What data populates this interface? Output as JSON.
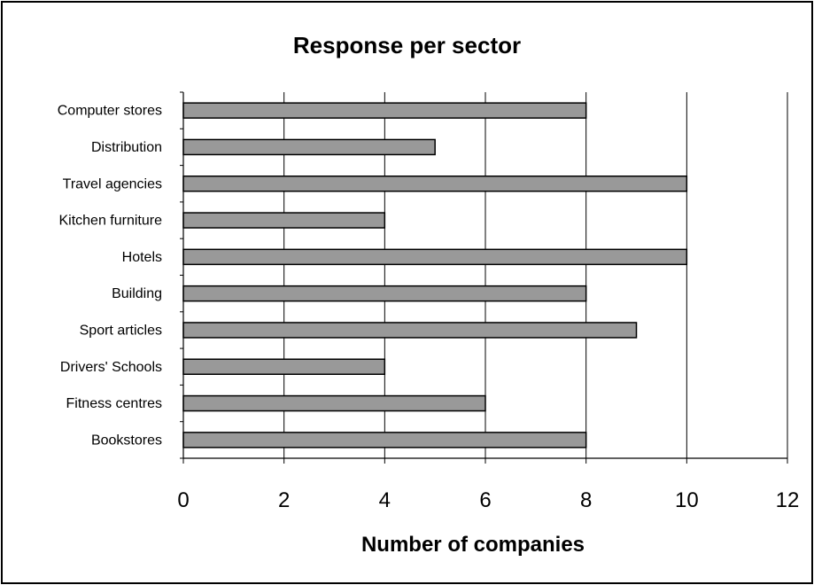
{
  "chart_data": {
    "type": "bar",
    "orientation": "horizontal",
    "title": "Response per sector",
    "xlabel": "Number of companies",
    "ylabel": "",
    "categories": [
      "Computer stores",
      "Distribution",
      "Travel agencies",
      "Kitchen furniture",
      "Hotels",
      "Building",
      "Sport articles",
      "Drivers' Schools",
      "Fitness centres",
      "Bookstores"
    ],
    "values": [
      8,
      5,
      10,
      4,
      10,
      8,
      9,
      4,
      6,
      8
    ],
    "xlim": [
      0,
      12
    ],
    "xticks": [
      "0",
      "2",
      "4",
      "6",
      "8",
      "10",
      "12"
    ],
    "grid": true,
    "legend": "none",
    "bar_color": "#999999",
    "bar_edge_color": "#000000"
  }
}
